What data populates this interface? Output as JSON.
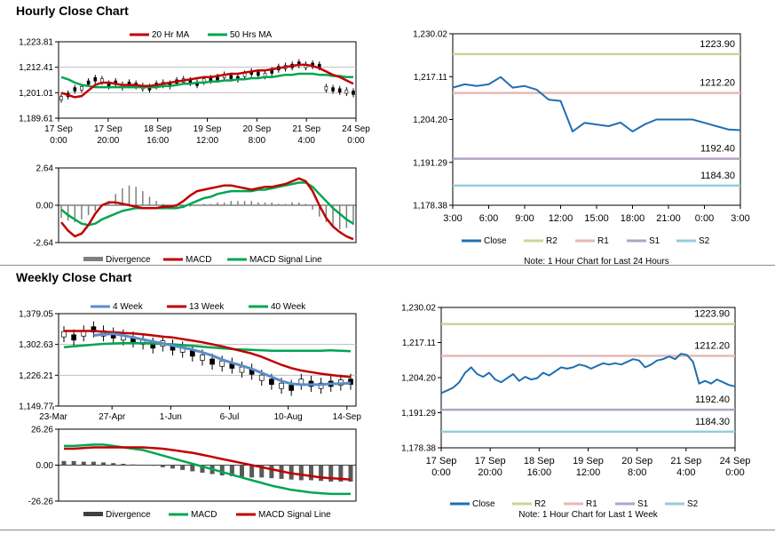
{
  "sections": {
    "hourly_title": "Hourly Close Chart",
    "weekly_title": "Weekly Close Chart"
  },
  "colors": {
    "ma_short": "#c00000",
    "ma_long": "#00a650",
    "close_line": "#1f6fb2",
    "r2": "#c4d79b",
    "r1": "#e6b9b8",
    "s1": "#b3a2c7",
    "s2": "#93cddd",
    "divergence": "#7f7f7f",
    "four_week": "#5b8dc9"
  },
  "chart_data": [
    {
      "id": "hourly-price",
      "type": "candlestick",
      "yticks": [
        "1,223.81",
        "1,212.41",
        "1,201.01",
        "1,189.61"
      ],
      "ylim": [
        1189.61,
        1223.81
      ],
      "xticks": [
        [
          "17 Sep",
          "0:00"
        ],
        [
          "17 Sep",
          "20:00"
        ],
        [
          "18 Sep",
          "16:00"
        ],
        [
          "19 Sep",
          "12:00"
        ],
        [
          "20 Sep",
          "8:00"
        ],
        [
          "21 Sep",
          "4:00"
        ],
        [
          "24 Sep",
          "0:00"
        ]
      ],
      "legend": [
        "20 Hr MA",
        "50 Hrs MA"
      ],
      "ohlc": [
        1198.5,
        1200.0,
        1202.5,
        1203.0,
        1205.5,
        1207.0,
        1206.5,
        1204.5,
        1205.5,
        1204.0,
        1205.0,
        1204.5,
        1203.5,
        1203.0,
        1204.5,
        1205.0,
        1204.5,
        1206.0,
        1206.5,
        1206.0,
        1205.0,
        1206.5,
        1207.0,
        1207.5,
        1208.5,
        1208.0,
        1207.5,
        1209.0,
        1210.0,
        1209.5,
        1209.0,
        1210.5,
        1212.0,
        1212.5,
        1213.0,
        1214.0,
        1213.0,
        1213.5,
        1213.0,
        1203.0,
        1202.5,
        1202.0,
        1201.5,
        1201.0
      ],
      "ma20": [
        1201.0,
        1200.0,
        1199.0,
        1199.5,
        1202.0,
        1204.5,
        1205.5,
        1205.5,
        1205.0,
        1204.5,
        1204.5,
        1204.5,
        1204.0,
        1204.0,
        1204.5,
        1205.0,
        1205.5,
        1206.0,
        1206.5,
        1207.0,
        1207.5,
        1208.0,
        1208.0,
        1208.5,
        1209.0,
        1209.5,
        1209.5,
        1210.0,
        1210.5,
        1211.0,
        1211.0,
        1211.5,
        1212.0,
        1212.5,
        1213.0,
        1213.5,
        1213.5,
        1213.0,
        1212.0,
        1210.5,
        1209.0,
        1208.0,
        1206.5,
        1205.0
      ],
      "ma50": [
        1208.0,
        1207.0,
        1205.5,
        1204.5,
        1204.0,
        1203.5,
        1203.5,
        1203.5,
        1203.5,
        1203.5,
        1203.5,
        1203.5,
        1203.5,
        1203.5,
        1203.5,
        1204.0,
        1204.0,
        1204.5,
        1205.0,
        1205.0,
        1205.5,
        1205.5,
        1206.0,
        1206.0,
        1206.5,
        1206.5,
        1207.0,
        1207.0,
        1207.5,
        1207.5,
        1208.0,
        1208.0,
        1208.5,
        1209.0,
        1209.0,
        1209.5,
        1209.5,
        1209.5,
        1209.0,
        1209.0,
        1208.5,
        1208.5,
        1208.0,
        1208.0
      ]
    },
    {
      "id": "hourly-macd",
      "type": "macd",
      "yticks": [
        "2.64",
        "0.00",
        "-2.64"
      ],
      "ylim": [
        -2.64,
        2.64
      ],
      "legend": [
        "Divergence",
        "MACD",
        "MACD Signal Line"
      ],
      "divergence": [
        -0.9,
        -1.1,
        -1.2,
        -1.0,
        -0.7,
        -0.4,
        -0.1,
        0.3,
        0.8,
        1.2,
        1.4,
        1.3,
        1.0,
        0.6,
        0.3,
        0.1,
        -0.1,
        -0.2,
        -0.2,
        -0.1,
        0.0,
        0.1,
        0.1,
        0.2,
        0.2,
        0.3,
        0.3,
        0.3,
        0.3,
        0.2,
        0.2,
        0.2,
        0.1,
        0.1,
        0.2,
        0.2,
        0.1,
        -0.3,
        -0.8,
        -1.2,
        -1.5,
        -1.7,
        -1.6,
        -1.4
      ],
      "macd": [
        -1.2,
        -1.8,
        -2.2,
        -2.0,
        -1.4,
        -0.6,
        0.0,
        0.2,
        0.2,
        0.1,
        0.0,
        -0.1,
        -0.2,
        -0.2,
        -0.2,
        -0.1,
        -0.1,
        0.0,
        0.3,
        0.7,
        1.0,
        1.1,
        1.2,
        1.3,
        1.4,
        1.4,
        1.3,
        1.2,
        1.1,
        1.2,
        1.3,
        1.3,
        1.4,
        1.5,
        1.7,
        1.9,
        1.7,
        1.0,
        0.0,
        -0.9,
        -1.5,
        -1.9,
        -2.2,
        -2.4
      ],
      "signal": [
        -0.3,
        -0.7,
        -1.0,
        -1.3,
        -1.4,
        -1.3,
        -1.0,
        -0.8,
        -0.6,
        -0.4,
        -0.3,
        -0.2,
        -0.2,
        -0.2,
        -0.2,
        -0.2,
        -0.2,
        -0.2,
        -0.1,
        0.1,
        0.3,
        0.5,
        0.6,
        0.8,
        0.9,
        1.0,
        1.0,
        1.0,
        1.0,
        1.1,
        1.1,
        1.2,
        1.3,
        1.4,
        1.5,
        1.6,
        1.6,
        1.3,
        0.8,
        0.3,
        -0.2,
        -0.6,
        -1.0,
        -1.3
      ]
    },
    {
      "id": "hourly-levels",
      "type": "line",
      "yticks": [
        "1,230.02",
        "1,217.11",
        "1,204.20",
        "1,191.29",
        "1,178.38"
      ],
      "ylim": [
        1178.38,
        1230.02
      ],
      "xticks": [
        "3:00",
        "6:00",
        "9:00",
        "12:00",
        "15:00",
        "18:00",
        "21:00",
        "0:00",
        "3:00"
      ],
      "close": [
        1213.8,
        1214.8,
        1214.3,
        1214.8,
        1217.0,
        1213.8,
        1214.3,
        1213.2,
        1210.2,
        1209.8,
        1200.6,
        1203.2,
        1202.7,
        1202.2,
        1203.3,
        1200.6,
        1202.7,
        1204.2,
        1204.2,
        1204.2,
        1204.2,
        1203.2,
        1202.2,
        1201.2,
        1201.0
      ],
      "levels": [
        {
          "name": "R2",
          "value": 1223.9,
          "label": "1223.90"
        },
        {
          "name": "R1",
          "value": 1212.2,
          "label": "1212.20"
        },
        {
          "name": "S1",
          "value": 1192.4,
          "label": "1192.40"
        },
        {
          "name": "S2",
          "value": 1184.3,
          "label": "1184.30"
        }
      ],
      "legend": [
        "Close",
        "R2",
        "R1",
        "S1",
        "S2"
      ],
      "note": "Note: 1 Hour Chart for Last 24 Hours"
    },
    {
      "id": "weekly-price",
      "type": "candlestick",
      "yticks": [
        "1,379.05",
        "1,302.63",
        "1,226.21",
        "1,149.77"
      ],
      "ylim": [
        1149.77,
        1379.05
      ],
      "xticks": [
        "23-Mar",
        "27-Apr",
        "1-Jun",
        "6-Jul",
        "10-Aug",
        "14-Sep"
      ],
      "legend": [
        "4 Week",
        "13 Week",
        "40 Week"
      ],
      "ohlc": [
        1328,
        1320,
        1330,
        1340,
        1330,
        1325,
        1320,
        1315,
        1310,
        1300,
        1305,
        1295,
        1290,
        1280,
        1270,
        1260,
        1255,
        1250,
        1240,
        1235,
        1220,
        1210,
        1200,
        1195,
        1210,
        1205,
        1200,
        1205,
        1208,
        1210
      ],
      "wk4": [
        null,
        null,
        null,
        1325,
        1328,
        1329,
        1325,
        1320,
        1315,
        1310,
        1305,
        1300,
        1295,
        1290,
        1283,
        1275,
        1265,
        1257,
        1250,
        1242,
        1232,
        1222,
        1212,
        1205,
        1203,
        1203,
        1203,
        1205,
        1205,
        1207
      ],
      "wk13": [
        1336,
        1336,
        1336,
        1336,
        1334,
        1333,
        1331,
        1330,
        1328,
        1325,
        1322,
        1320,
        1316,
        1312,
        1308,
        1303,
        1298,
        1292,
        1286,
        1280,
        1272,
        1262,
        1252,
        1244,
        1238,
        1234,
        1230,
        1227,
        1224,
        1222
      ],
      "wk40": [
        1296,
        1298,
        1300,
        1302,
        1304,
        1305,
        1306,
        1306,
        1306,
        1305,
        1304,
        1303,
        1301,
        1299,
        1297,
        1295,
        1293,
        1291,
        1290,
        1289,
        1288,
        1287,
        1287,
        1287,
        1287,
        1287,
        1287,
        1288,
        1287,
        1286
      ]
    },
    {
      "id": "weekly-macd",
      "type": "macd",
      "yticks": [
        "26.26",
        "0.00",
        "-26.26"
      ],
      "ylim": [
        -26.26,
        26.26
      ],
      "legend": [
        "Divergence",
        "MACD",
        "MACD Signal Line"
      ],
      "divergence": [
        3,
        3,
        2.5,
        2.5,
        2,
        1.5,
        1,
        0.5,
        0,
        -0.5,
        -1.5,
        -2.5,
        -3.5,
        -4.5,
        -5.5,
        -6.5,
        -7.5,
        -8,
        -8.5,
        -9,
        -9,
        -9.5,
        -10,
        -10.5,
        -11,
        -11,
        -11.5,
        -12,
        -12,
        -12
      ],
      "macd": [
        14,
        14,
        14.5,
        15,
        15,
        14,
        13,
        12,
        11,
        9,
        7,
        5,
        3,
        1,
        -1,
        -3,
        -5,
        -7,
        -9,
        -11,
        -13,
        -15,
        -16.5,
        -18,
        -19,
        -20,
        -20.5,
        -21,
        -21,
        -21
      ],
      "signal": [
        12,
        12,
        12.5,
        13,
        13,
        13,
        13,
        13,
        13,
        12.5,
        12,
        11,
        10,
        9,
        7.5,
        6,
        4.5,
        3,
        1.5,
        0,
        -1.5,
        -3,
        -4.5,
        -6,
        -7,
        -8,
        -9,
        -9.5,
        -10,
        -10.5
      ]
    },
    {
      "id": "weekly-levels",
      "type": "line",
      "yticks": [
        "1,230.02",
        "1,217.11",
        "1,204.20",
        "1,191.29",
        "1,178.38"
      ],
      "ylim": [
        1178.38,
        1230.02
      ],
      "xticks": [
        [
          "17 Sep",
          "0:00"
        ],
        [
          "17 Sep",
          "20:00"
        ],
        [
          "18 Sep",
          "16:00"
        ],
        [
          "19 Sep",
          "12:00"
        ],
        [
          "20 Sep",
          "8:00"
        ],
        [
          "21 Sep",
          "4:00"
        ],
        [
          "24 Sep",
          "0:00"
        ]
      ],
      "close": [
        1198.5,
        1199.5,
        1200.5,
        1202.5,
        1206.0,
        1208.0,
        1205.5,
        1204.5,
        1206.0,
        1203.5,
        1202.5,
        1204.0,
        1205.5,
        1203.0,
        1204.5,
        1203.5,
        1204.0,
        1206.0,
        1205.0,
        1206.5,
        1208.0,
        1207.5,
        1208.0,
        1209.0,
        1208.5,
        1207.5,
        1208.5,
        1209.5,
        1209.0,
        1209.5,
        1209.0,
        1210.0,
        1211.0,
        1210.5,
        1208.0,
        1209.0,
        1210.5,
        1211.0,
        1212.0,
        1211.0,
        1213.0,
        1212.5,
        1210.0,
        1202.0,
        1203.0,
        1202.0,
        1203.5,
        1202.5,
        1201.5,
        1201.0
      ],
      "levels": [
        {
          "name": "R2",
          "value": 1223.9,
          "label": "1223.90"
        },
        {
          "name": "R1",
          "value": 1212.2,
          "label": "1212.20"
        },
        {
          "name": "S1",
          "value": 1192.4,
          "label": "1192.40"
        },
        {
          "name": "S2",
          "value": 1184.3,
          "label": "1184.30"
        }
      ],
      "legend": [
        "Close",
        "R2",
        "R1",
        "S1",
        "S2"
      ],
      "note": "Note: 1 Hour Chart for Last 1 Week"
    }
  ]
}
